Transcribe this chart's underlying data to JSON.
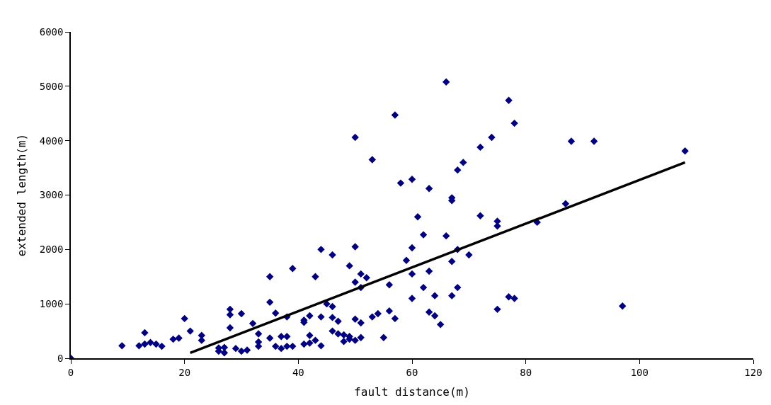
{
  "chart_data": {
    "type": "scatter",
    "xlabel": "fault distance(m)",
    "ylabel": "extended length(m)",
    "xlim": [
      0,
      120
    ],
    "xticks": [
      0,
      20,
      40,
      60,
      80,
      100,
      120
    ],
    "ylim": [
      0,
      6000
    ],
    "yticks": [
      0,
      1000,
      2000,
      3000,
      4000,
      5000,
      6000
    ],
    "grid": false,
    "marker": "diamond",
    "series": [
      {
        "color": "#000080",
        "x": [
          0,
          9,
          12,
          13,
          13,
          14,
          15,
          16,
          18,
          19,
          20,
          21,
          23,
          23,
          26,
          26,
          27,
          27,
          28,
          28,
          28,
          29,
          30,
          30,
          31,
          32,
          33,
          33,
          33,
          35,
          35,
          35,
          36,
          36,
          37,
          37,
          38,
          38,
          38,
          39,
          39,
          41,
          41,
          41,
          42,
          42,
          42,
          43,
          43,
          44,
          44,
          44,
          45,
          46,
          46,
          46,
          46,
          47,
          47,
          48,
          48,
          49,
          49,
          49,
          50,
          50,
          50,
          50,
          50,
          51,
          51,
          51,
          51,
          52,
          53,
          53,
          54,
          55,
          56,
          56,
          57,
          57,
          58,
          59,
          60,
          60,
          60,
          60,
          61,
          62,
          62,
          63,
          63,
          63,
          64,
          64,
          65,
          66,
          66,
          67,
          67,
          67,
          67,
          68,
          68,
          68,
          69,
          70,
          72,
          72,
          74,
          75,
          75,
          75,
          77,
          77,
          78,
          78,
          82,
          87,
          88,
          92,
          97,
          108
        ],
        "values": [
          0,
          230,
          230,
          470,
          260,
          290,
          260,
          220,
          350,
          370,
          730,
          500,
          420,
          330,
          190,
          130,
          100,
          200,
          900,
          800,
          560,
          180,
          820,
          130,
          150,
          640,
          450,
          300,
          220,
          1500,
          1030,
          370,
          830,
          220,
          180,
          400,
          220,
          400,
          760,
          1650,
          220,
          260,
          660,
          700,
          780,
          420,
          280,
          1500,
          330,
          2000,
          230,
          760,
          1000,
          1900,
          950,
          750,
          500,
          450,
          680,
          310,
          430,
          1700,
          400,
          350,
          4060,
          2050,
          1400,
          720,
          330,
          1550,
          1300,
          650,
          380,
          1480,
          3650,
          760,
          820,
          380,
          1350,
          870,
          4470,
          730,
          3220,
          1800,
          3290,
          2030,
          1550,
          1100,
          2600,
          2270,
          1300,
          3120,
          1600,
          850,
          1150,
          780,
          620,
          5080,
          2250,
          2950,
          2900,
          1780,
          1150,
          3460,
          2000,
          1300,
          3600,
          1900,
          3880,
          2620,
          4060,
          2520,
          2430,
          900,
          4740,
          1130,
          4320,
          1100,
          2500,
          2840,
          3990,
          3990,
          960,
          3810
        ]
      },
      {
        "type": "line",
        "color": "#000000",
        "marker": "none",
        "line_style": "solid",
        "x": [
          21,
          108
        ],
        "values": [
          100,
          3600
        ]
      }
    ]
  }
}
